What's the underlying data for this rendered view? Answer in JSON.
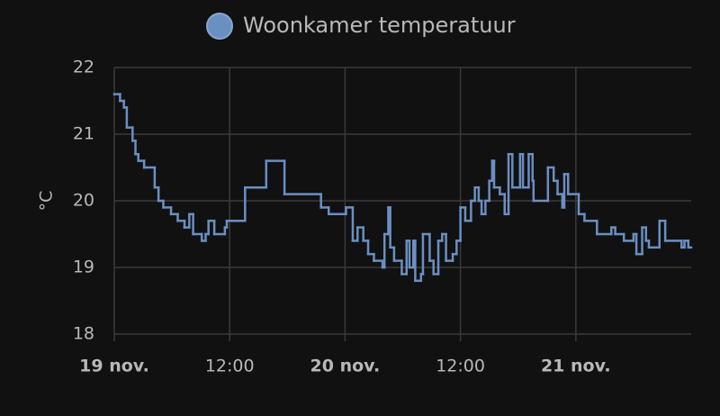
{
  "chart_data": {
    "type": "line",
    "step": true,
    "legend": "Woonkamer temperatuur",
    "y_label": "°C",
    "xlim": [
      0,
      60
    ],
    "ylim": [
      18,
      22
    ],
    "xticks": [
      {
        "value": 0,
        "label": "19 nov."
      },
      {
        "value": 12,
        "label": "12:00"
      },
      {
        "value": 24,
        "label": "20 nov."
      },
      {
        "value": 36,
        "label": "12:00"
      },
      {
        "value": 48,
        "label": "21 nov."
      }
    ],
    "yticks": [
      18,
      19,
      20,
      21,
      22
    ],
    "grid": true,
    "series": [
      {
        "name": "Woonkamer temperatuur",
        "color": "#6a8fc2",
        "x": [
          0,
          0.6,
          1.0,
          1.3,
          1.9,
          2.2,
          2.5,
          3.1,
          4.2,
          4.6,
          5.1,
          5.9,
          6.6,
          7.3,
          7.8,
          8.2,
          9.1,
          9.5,
          9.8,
          10.4,
          11.5,
          11.7,
          13.6,
          15.8,
          17.7,
          21.5,
          22.3,
          24.1,
          24.8,
          25.3,
          25.9,
          26.4,
          27.0,
          27.9,
          28.1,
          28.5,
          28.7,
          29.1,
          29.9,
          30.4,
          30.7,
          31.1,
          31.3,
          31.9,
          32.1,
          32.8,
          33.2,
          33.7,
          34.1,
          34.5,
          35.2,
          35.6,
          36.0,
          36.5,
          37.1,
          37.5,
          37.9,
          38.2,
          38.6,
          39.0,
          39.3,
          39.5,
          40.1,
          40.6,
          41.0,
          41.4,
          42.2,
          42.5,
          43.1,
          43.5,
          43.6,
          45.1,
          45.7,
          46.1,
          46.6,
          46.8,
          47.2,
          48.3,
          48.9,
          50.2,
          51.7,
          52.1,
          53.0,
          54.0,
          54.3,
          54.9,
          55.3,
          55.6,
          56.7,
          57.3,
          59.0,
          59.3,
          59.7
        ],
        "values": [
          21.6,
          21.5,
          21.4,
          21.1,
          20.9,
          20.7,
          20.6,
          20.5,
          20.2,
          20.0,
          19.9,
          19.8,
          19.7,
          19.6,
          19.8,
          19.5,
          19.4,
          19.5,
          19.7,
          19.5,
          19.6,
          19.7,
          20.2,
          20.6,
          20.1,
          19.9,
          19.8,
          19.9,
          19.4,
          19.6,
          19.4,
          19.2,
          19.1,
          19.0,
          19.5,
          19.9,
          19.3,
          19.1,
          18.9,
          19.4,
          19.0,
          19.4,
          18.8,
          18.9,
          19.5,
          19.1,
          18.9,
          19.4,
          19.5,
          19.1,
          19.2,
          19.4,
          19.9,
          19.7,
          20.0,
          20.2,
          20.0,
          19.8,
          20.0,
          20.3,
          20.6,
          20.2,
          20.1,
          19.8,
          20.7,
          20.2,
          20.7,
          20.2,
          20.7,
          20.3,
          20.0,
          20.5,
          20.3,
          20.1,
          19.9,
          20.4,
          20.1,
          19.8,
          19.7,
          19.5,
          19.6,
          19.5,
          19.4,
          19.5,
          19.2,
          19.6,
          19.4,
          19.3,
          19.7,
          19.4,
          19.3,
          19.4,
          19.3
        ]
      }
    ]
  }
}
